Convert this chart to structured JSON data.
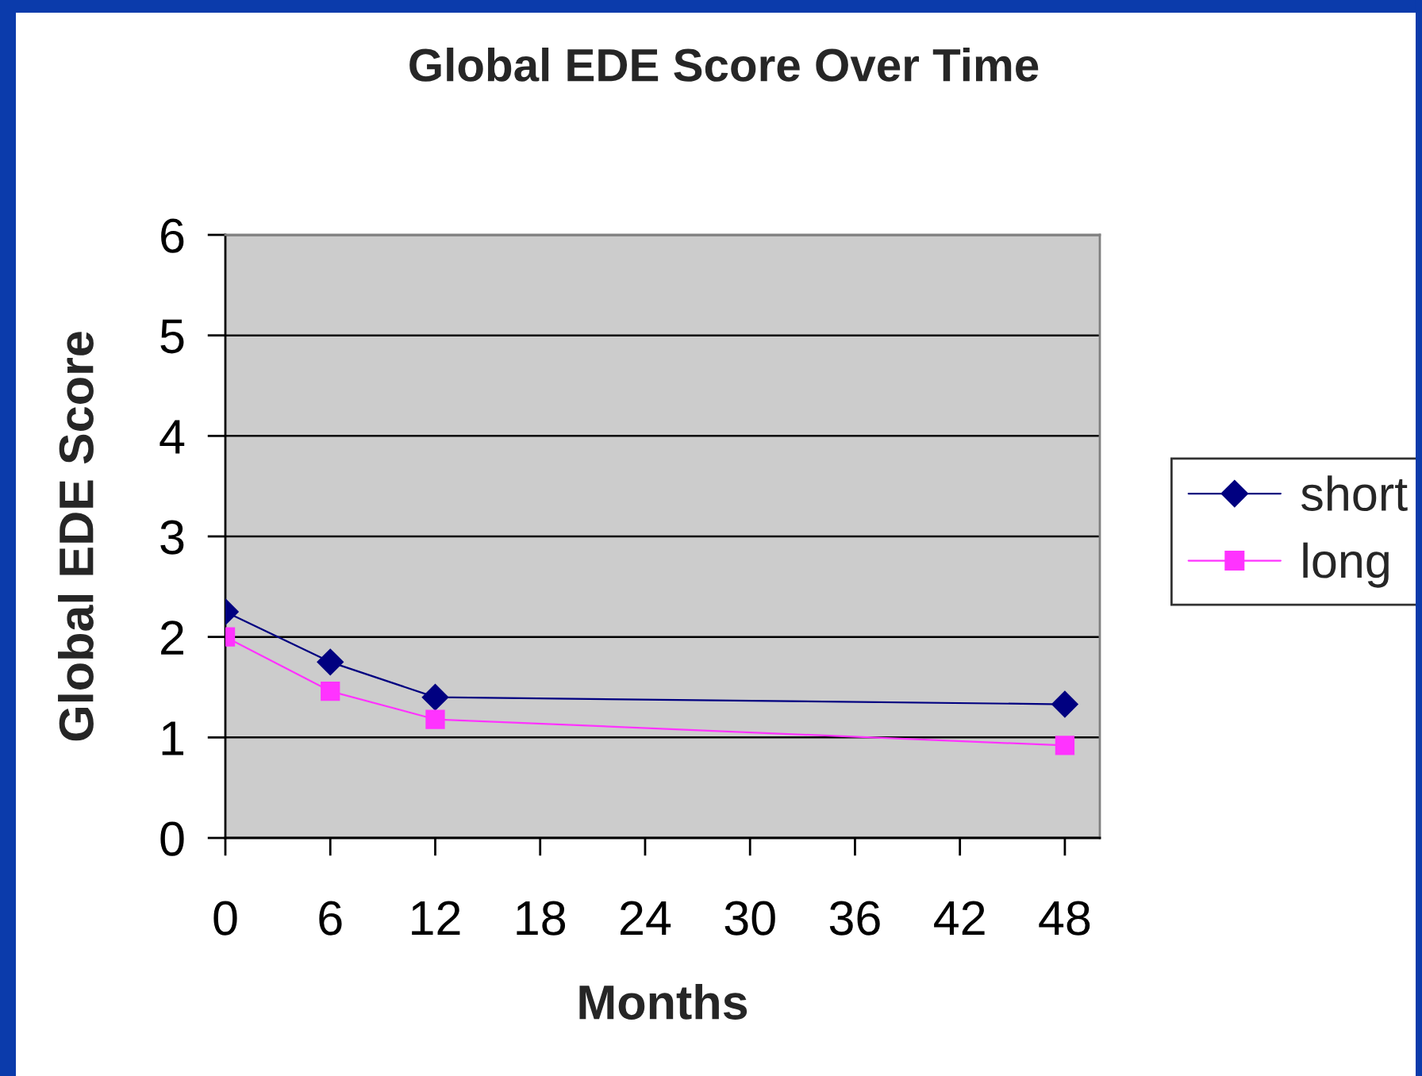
{
  "chart_data": {
    "type": "line",
    "title": "Global EDE Score Over Time",
    "xlabel": "Months",
    "ylabel": "Global EDE Score",
    "x": [
      0,
      6,
      12,
      48
    ],
    "series": [
      {
        "name": "short",
        "color": "#000080",
        "marker": "diamond",
        "values": [
          2.25,
          1.75,
          1.4,
          1.33
        ]
      },
      {
        "name": "long",
        "color": "#ff33ff",
        "marker": "square",
        "values": [
          2.0,
          1.46,
          1.18,
          0.92
        ]
      }
    ],
    "xlim": [
      0,
      50
    ],
    "xticks": [
      0,
      6,
      12,
      18,
      24,
      30,
      36,
      42,
      48
    ],
    "ylim": [
      0,
      6
    ],
    "yticks": [
      0,
      1,
      2,
      3,
      4,
      5,
      6
    ],
    "grid": "y",
    "legend": "right",
    "line_style": "solid"
  }
}
